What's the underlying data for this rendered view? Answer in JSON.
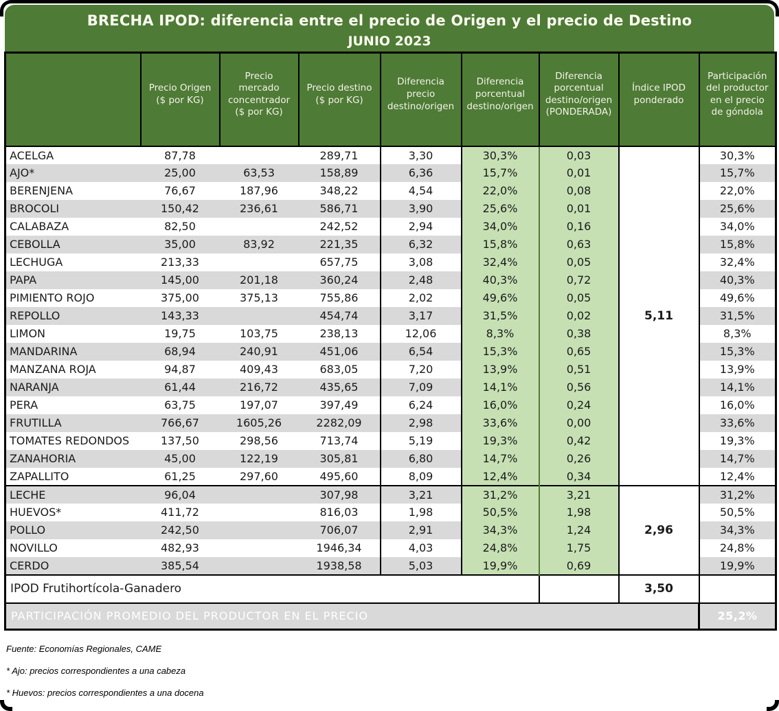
{
  "title": {
    "line1": "BRECHA IPOD: diferencia entre el precio de Origen y el precio de Destino",
    "line2": "JUNIO 2023"
  },
  "chart_data": {
    "type": "table",
    "title": "BRECHA IPOD: diferencia entre el precio de Origen y el precio de Destino — JUNIO 2023",
    "columns": [
      "",
      "Precio Origen ($ por KG)",
      "Precio mercado concentrador ($ por KG)",
      "Precio destino ($ por KG)",
      "Diferencia precio destino/origen",
      "Diferencia porcentual destino/origen",
      "Diferencia porcentual destino/origen (PONDERADA)",
      "Índice IPOD ponderado",
      "Participación del productor en el precio de góndola"
    ],
    "section_break_index": 19,
    "ipod_frutihorticola": "5,11",
    "ipod_ganadero": "2,96",
    "rows": [
      {
        "product": "ACELGA",
        "precio_origen": "87,78",
        "precio_mercado": "",
        "precio_destino": "289,71",
        "dif_precio": "3,30",
        "dif_porcentual": "30,3%",
        "dif_ponderada": "0,03",
        "participacion": "30,3%"
      },
      {
        "product": "AJO*",
        "precio_origen": "25,00",
        "precio_mercado": "63,53",
        "precio_destino": "158,89",
        "dif_precio": "6,36",
        "dif_porcentual": "15,7%",
        "dif_ponderada": "0,01",
        "participacion": "15,7%"
      },
      {
        "product": "BERENJENA",
        "precio_origen": "76,67",
        "precio_mercado": "187,96",
        "precio_destino": "348,22",
        "dif_precio": "4,54",
        "dif_porcentual": "22,0%",
        "dif_ponderada": "0,08",
        "participacion": "22,0%"
      },
      {
        "product": "BROCOLI",
        "precio_origen": "150,42",
        "precio_mercado": "236,61",
        "precio_destino": "586,71",
        "dif_precio": "3,90",
        "dif_porcentual": "25,6%",
        "dif_ponderada": "0,01",
        "participacion": "25,6%"
      },
      {
        "product": "CALABAZA",
        "precio_origen": "82,50",
        "precio_mercado": "",
        "precio_destino": "242,52",
        "dif_precio": "2,94",
        "dif_porcentual": "34,0%",
        "dif_ponderada": "0,16",
        "participacion": "34,0%"
      },
      {
        "product": "CEBOLLA",
        "precio_origen": "35,00",
        "precio_mercado": "83,92",
        "precio_destino": "221,35",
        "dif_precio": "6,32",
        "dif_porcentual": "15,8%",
        "dif_ponderada": "0,63",
        "participacion": "15,8%"
      },
      {
        "product": "LECHUGA",
        "precio_origen": "213,33",
        "precio_mercado": "",
        "precio_destino": "657,75",
        "dif_precio": "3,08",
        "dif_porcentual": "32,4%",
        "dif_ponderada": "0,05",
        "participacion": "32,4%"
      },
      {
        "product": "PAPA",
        "precio_origen": "145,00",
        "precio_mercado": "201,18",
        "precio_destino": "360,24",
        "dif_precio": "2,48",
        "dif_porcentual": "40,3%",
        "dif_ponderada": "0,72",
        "participacion": "40,3%"
      },
      {
        "product": "PIMIENTO ROJO",
        "precio_origen": "375,00",
        "precio_mercado": "375,13",
        "precio_destino": "755,86",
        "dif_precio": "2,02",
        "dif_porcentual": "49,6%",
        "dif_ponderada": "0,05",
        "participacion": "49,6%"
      },
      {
        "product": "REPOLLO",
        "precio_origen": "143,33",
        "precio_mercado": "",
        "precio_destino": "454,74",
        "dif_precio": "3,17",
        "dif_porcentual": "31,5%",
        "dif_ponderada": "0,02",
        "participacion": "31,5%"
      },
      {
        "product": "LIMON",
        "precio_origen": "19,75",
        "precio_mercado": "103,75",
        "precio_destino": "238,13",
        "dif_precio": "12,06",
        "dif_porcentual": "8,3%",
        "dif_ponderada": "0,38",
        "participacion": "8,3%"
      },
      {
        "product": "MANDARINA",
        "precio_origen": "68,94",
        "precio_mercado": "240,91",
        "precio_destino": "451,06",
        "dif_precio": "6,54",
        "dif_porcentual": "15,3%",
        "dif_ponderada": "0,65",
        "participacion": "15,3%"
      },
      {
        "product": "MANZANA ROJA",
        "precio_origen": "94,87",
        "precio_mercado": "409,43",
        "precio_destino": "683,05",
        "dif_precio": "7,20",
        "dif_porcentual": "13,9%",
        "dif_ponderada": "0,51",
        "participacion": "13,9%"
      },
      {
        "product": "NARANJA",
        "precio_origen": "61,44",
        "precio_mercado": "216,72",
        "precio_destino": "435,65",
        "dif_precio": "7,09",
        "dif_porcentual": "14,1%",
        "dif_ponderada": "0,56",
        "participacion": "14,1%"
      },
      {
        "product": "PERA",
        "precio_origen": "63,75",
        "precio_mercado": "197,07",
        "precio_destino": "397,49",
        "dif_precio": "6,24",
        "dif_porcentual": "16,0%",
        "dif_ponderada": "0,24",
        "participacion": "16,0%"
      },
      {
        "product": "FRUTILLA",
        "precio_origen": "766,67",
        "precio_mercado": "1605,26",
        "precio_destino": "2282,09",
        "dif_precio": "2,98",
        "dif_porcentual": "33,6%",
        "dif_ponderada": "0,00",
        "participacion": "33,6%"
      },
      {
        "product": "TOMATES REDONDOS",
        "precio_origen": "137,50",
        "precio_mercado": "298,56",
        "precio_destino": "713,74",
        "dif_precio": "5,19",
        "dif_porcentual": "19,3%",
        "dif_ponderada": "0,42",
        "participacion": "19,3%"
      },
      {
        "product": "ZANAHORIA",
        "precio_origen": "45,00",
        "precio_mercado": "122,19",
        "precio_destino": "305,81",
        "dif_precio": "6,80",
        "dif_porcentual": "14,7%",
        "dif_ponderada": "0,26",
        "participacion": "14,7%"
      },
      {
        "product": "ZAPALLITO",
        "precio_origen": "61,25",
        "precio_mercado": "297,60",
        "precio_destino": "495,60",
        "dif_precio": "8,09",
        "dif_porcentual": "12,4%",
        "dif_ponderada": "0,34",
        "participacion": "12,4%"
      },
      {
        "product": "LECHE",
        "precio_origen": "96,04",
        "precio_mercado": "",
        "precio_destino": "307,98",
        "dif_precio": "3,21",
        "dif_porcentual": "31,2%",
        "dif_ponderada": "3,21",
        "participacion": "31,2%"
      },
      {
        "product": "HUEVOS*",
        "precio_origen": "411,72",
        "precio_mercado": "",
        "precio_destino": "816,03",
        "dif_precio": "1,98",
        "dif_porcentual": "50,5%",
        "dif_ponderada": "1,98",
        "participacion": "50,5%"
      },
      {
        "product": "POLLO",
        "precio_origen": "242,50",
        "precio_mercado": "",
        "precio_destino": "706,07",
        "dif_precio": "2,91",
        "dif_porcentual": "34,3%",
        "dif_ponderada": "1,24",
        "participacion": "34,3%"
      },
      {
        "product": "NOVILLO",
        "precio_origen": "482,93",
        "precio_mercado": "",
        "precio_destino": "1946,34",
        "dif_precio": "4,03",
        "dif_porcentual": "24,8%",
        "dif_ponderada": "1,75",
        "participacion": "24,8%"
      },
      {
        "product": "CERDO",
        "precio_origen": "385,54",
        "precio_mercado": "",
        "precio_destino": "1938,58",
        "dif_precio": "5,03",
        "dif_porcentual": "19,9%",
        "dif_ponderada": "0,69",
        "participacion": "19,9%"
      }
    ]
  },
  "summary": {
    "total_label": "IPOD Frutihortícola-Ganadero",
    "total_value": "3,50",
    "band_label": "PARTICIPACIÓN PROMEDIO DEL PRODUCTOR EN EL PRECIO",
    "band_value": "25,2%"
  },
  "footnotes": [
    "Fuente: Economías Regionales, CAME",
    "* Ajo: precios correspondientes a una cabeza",
    "* Huevos: precios correspondientes a una docena"
  ],
  "colors": {
    "dark_green": "#4e7b35",
    "light_green": "#c6e0b4",
    "zebra_gray": "#d9d9d9",
    "frame_black": "#000000"
  }
}
